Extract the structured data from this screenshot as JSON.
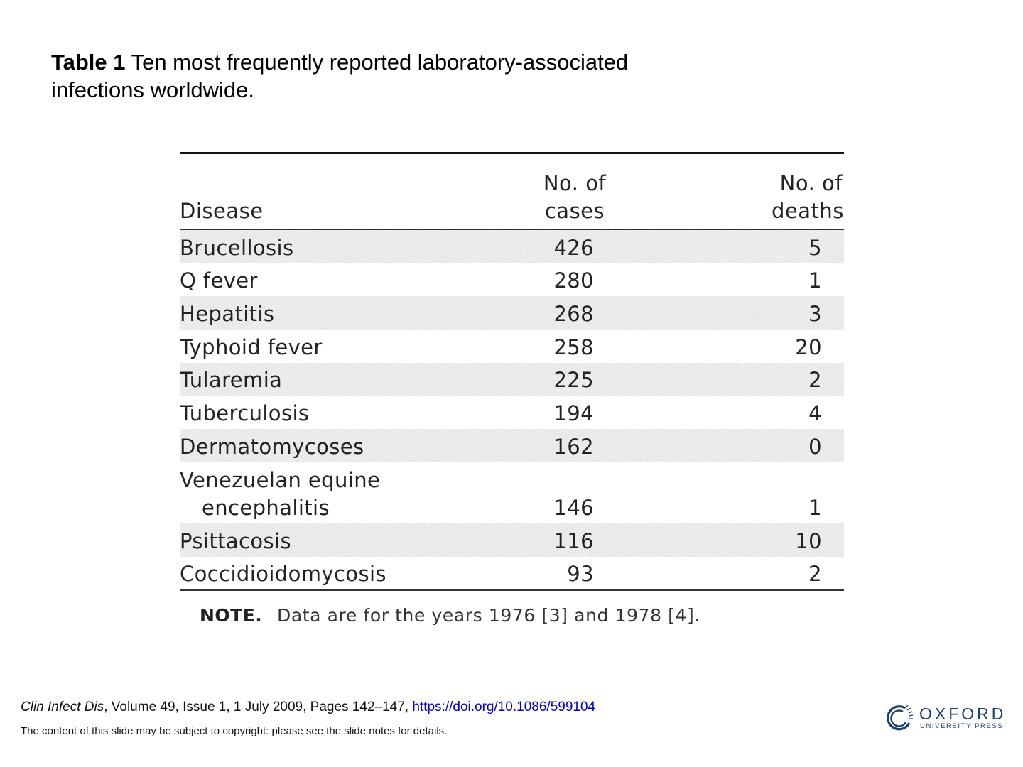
{
  "title": {
    "label": "Table 1",
    "text": " Ten most frequently reported laboratory-associated infections worldwide."
  },
  "table": {
    "headers": {
      "disease": "Disease",
      "cases_line1": "No. of",
      "cases_line2": "cases",
      "deaths_line1": "No. of",
      "deaths_line2": "deaths"
    },
    "rows": [
      {
        "disease": "Brucellosis",
        "cases": "426",
        "deaths": "5"
      },
      {
        "disease": "Q fever",
        "cases": "280",
        "deaths": "1"
      },
      {
        "disease": "Hepatitis",
        "cases": "268",
        "deaths": "3"
      },
      {
        "disease": "Typhoid fever",
        "cases": "258",
        "deaths": "20"
      },
      {
        "disease": "Tularemia",
        "cases": "225",
        "deaths": "2"
      },
      {
        "disease": "Tuberculosis",
        "cases": "194",
        "deaths": "4"
      },
      {
        "disease": "Dermatomycoses",
        "cases": "162",
        "deaths": "0"
      },
      {
        "disease_line1": "Venezuelan equine",
        "disease_line2": "encephalitis",
        "cases": "146",
        "deaths": "1"
      },
      {
        "disease": "Psittacosis",
        "cases": "116",
        "deaths": "10"
      },
      {
        "disease": "Coccidioidomycosis",
        "cases": "93",
        "deaths": "2"
      }
    ],
    "note_label": "NOTE.",
    "note_text": "Data are for the years 1976 [3] and 1978 [4]."
  },
  "footer": {
    "journal": "Clin Infect Dis",
    "details": ", Volume 49, Issue 1, 1 July 2009, Pages 142–147, ",
    "doi": "https://doi.org/10.1086/599104",
    "copyright": "The content of this slide may be subject to copyright: please see the slide notes for details.",
    "logo_name": "OXFORD",
    "logo_sub": "UNIVERSITY PRESS",
    "logo_color": "#1c3f72",
    "link_color": "#0000cc"
  }
}
